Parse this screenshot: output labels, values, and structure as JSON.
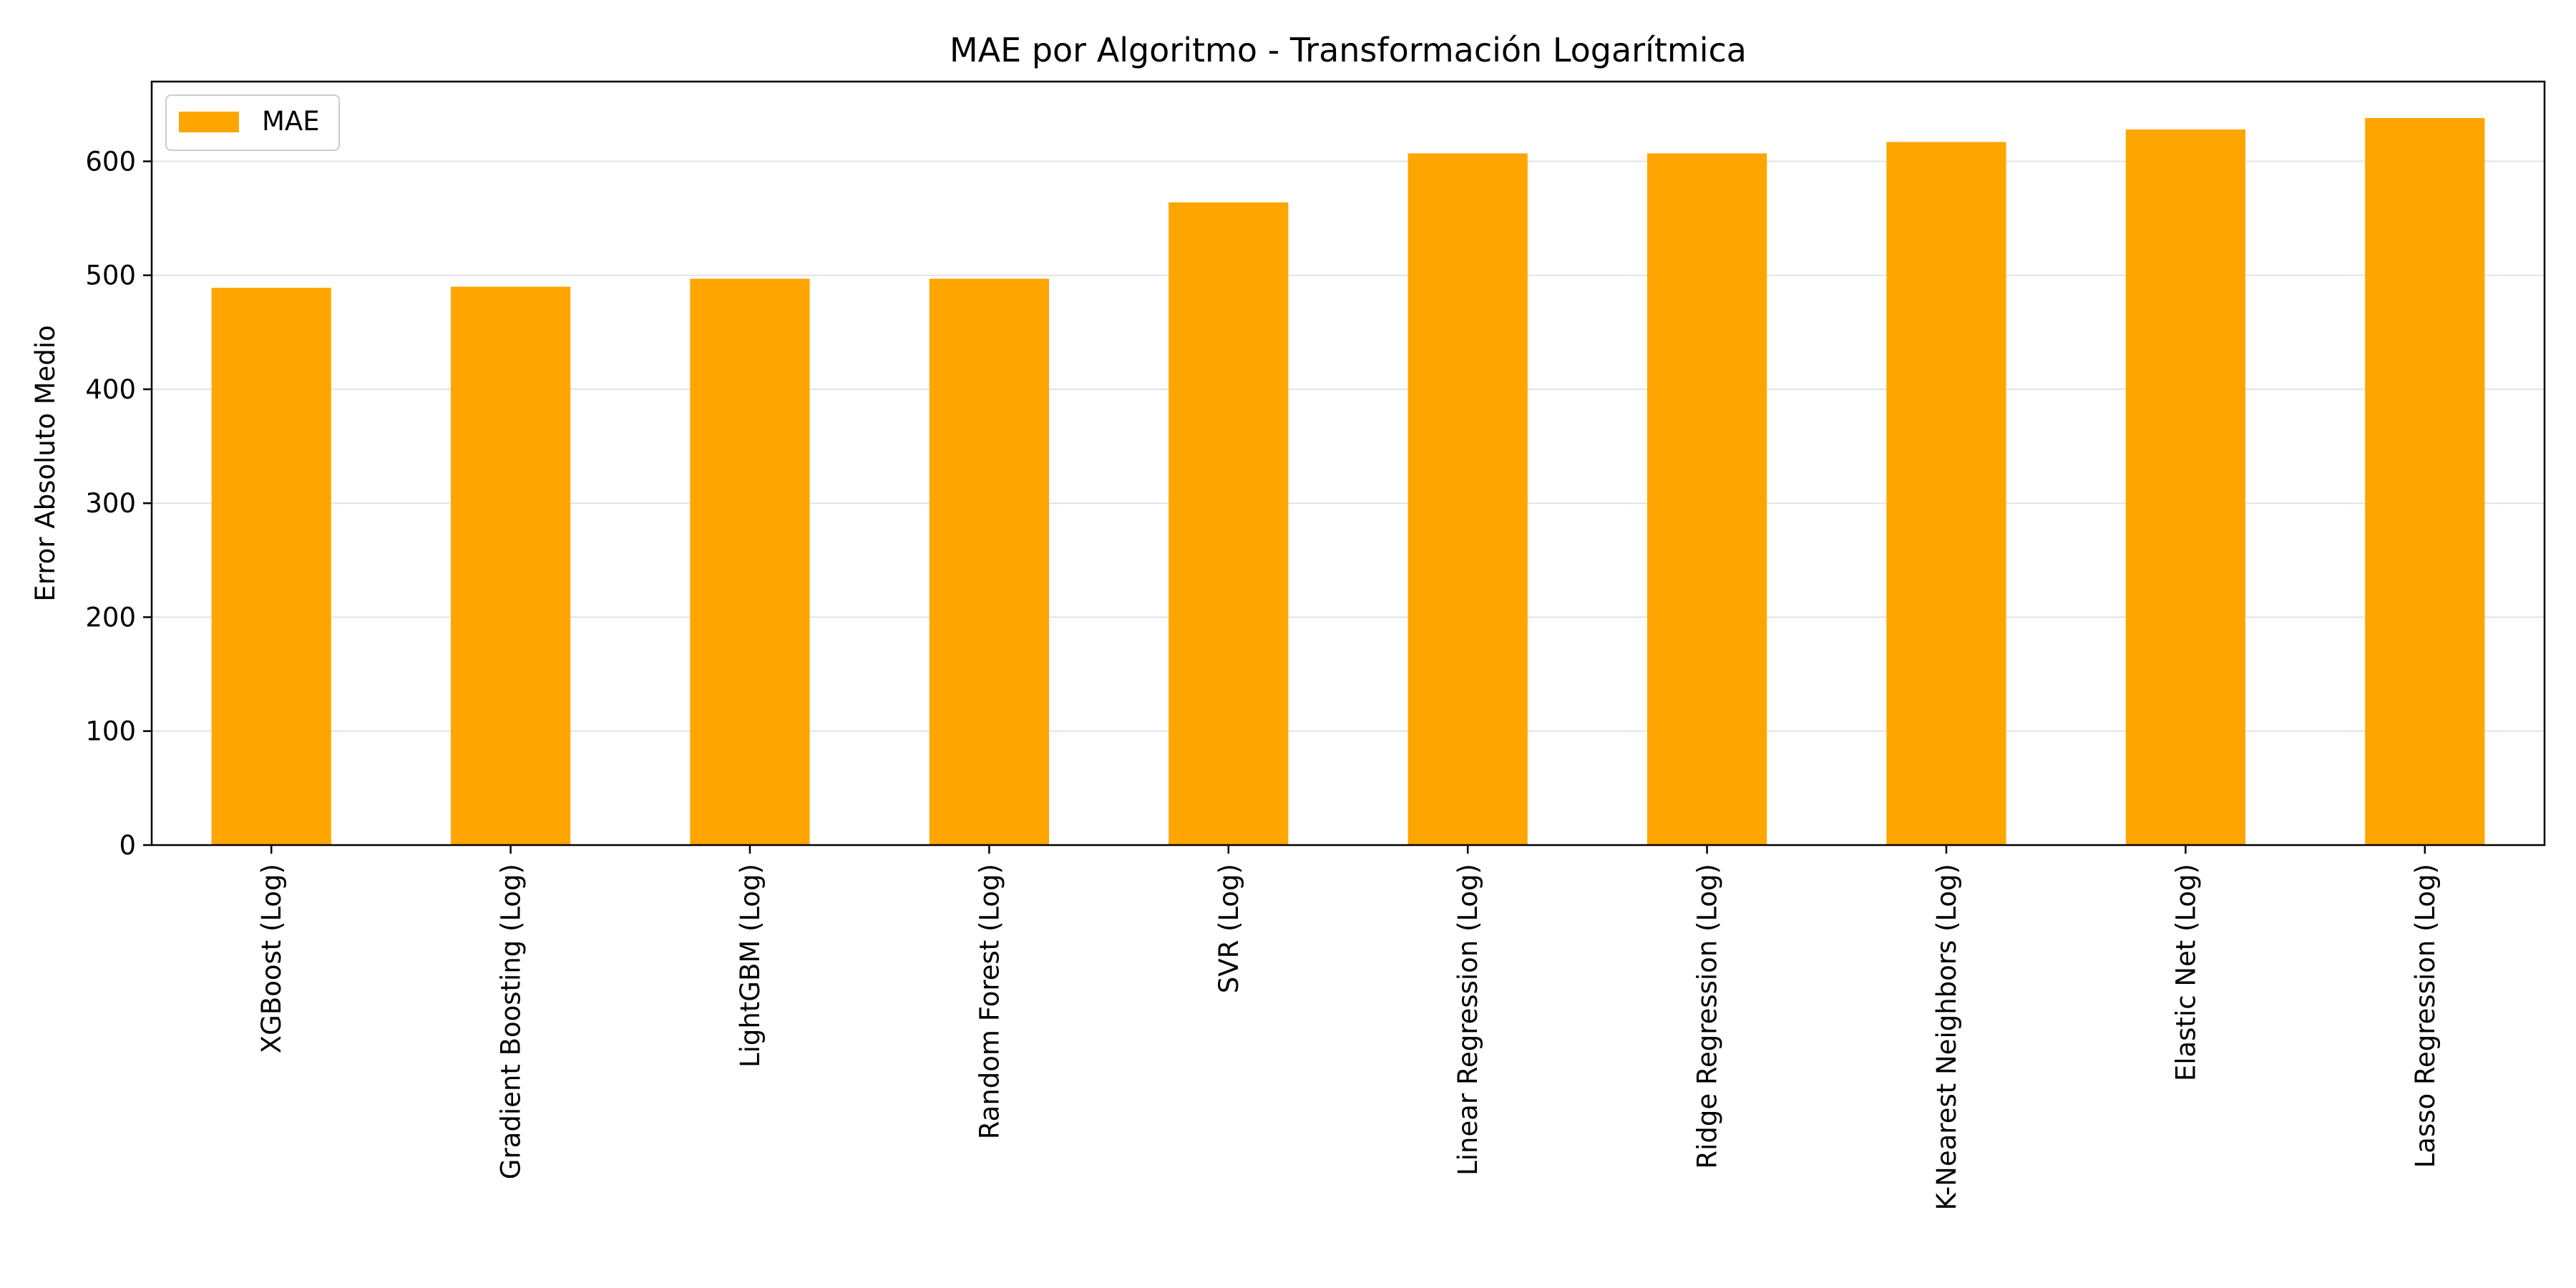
{
  "chart_data": {
    "type": "bar",
    "title": "MAE por Algoritmo - Transformación Logarítmica",
    "xlabel": "",
    "ylabel": "Error Absoluto Medio",
    "categories": [
      "XGBoost (Log)",
      "Gradient Boosting (Log)",
      "LightGBM (Log)",
      "Random Forest (Log)",
      "SVR (Log)",
      "Linear Regression (Log)",
      "Ridge Regression (Log)",
      "K-Nearest Neighbors (Log)",
      "Elastic Net (Log)",
      "Lasso Regression (Log)"
    ],
    "series": [
      {
        "name": "MAE",
        "color": "#ffa500",
        "values": [
          489,
          490,
          497,
          497,
          564,
          607,
          607,
          617,
          628,
          638
        ]
      }
    ],
    "ylim": [
      0,
      670
    ],
    "yticks": [
      0,
      100,
      200,
      300,
      400,
      500,
      600
    ],
    "grid": "horizontal",
    "legend_position": "top-left"
  }
}
